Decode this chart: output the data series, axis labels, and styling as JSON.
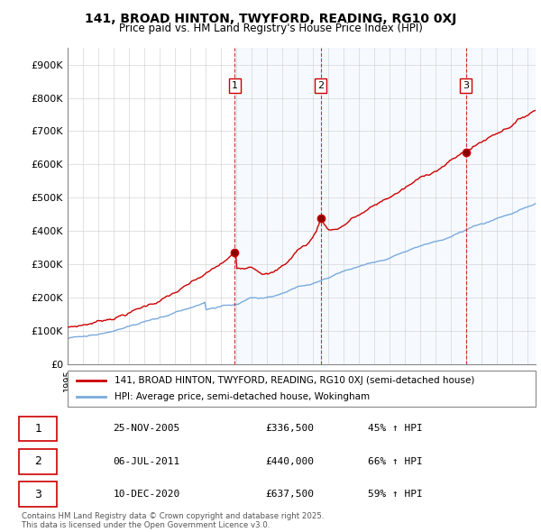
{
  "title1": "141, BROAD HINTON, TWYFORD, READING, RG10 0XJ",
  "title2": "Price paid vs. HM Land Registry's House Price Index (HPI)",
  "ylabel_ticks": [
    "£0",
    "£100K",
    "£200K",
    "£300K",
    "£400K",
    "£500K",
    "£600K",
    "£700K",
    "£800K",
    "£900K"
  ],
  "ytick_values": [
    0,
    100000,
    200000,
    300000,
    400000,
    500000,
    600000,
    700000,
    800000,
    900000
  ],
  "ylim": [
    0,
    950000
  ],
  "xlim_start": 1995.0,
  "xlim_end": 2025.5,
  "sale_dates": [
    2005.9,
    2011.5,
    2020.95
  ],
  "sale_prices": [
    336500,
    440000,
    637500
  ],
  "sale_labels": [
    "1",
    "2",
    "3"
  ],
  "vline_color": "#cc0000",
  "red_line_color": "#cc0000",
  "blue_line_color": "#7aaadd",
  "shade_color": "#ddeeff",
  "legend_label_red": "141, BROAD HINTON, TWYFORD, READING, RG10 0XJ (semi-detached house)",
  "legend_label_blue": "HPI: Average price, semi-detached house, Wokingham",
  "table_data": [
    [
      "1",
      "25-NOV-2005",
      "£336,500",
      "45% ↑ HPI"
    ],
    [
      "2",
      "06-JUL-2011",
      "£440,000",
      "66% ↑ HPI"
    ],
    [
      "3",
      "10-DEC-2020",
      "£637,500",
      "59% ↑ HPI"
    ]
  ],
  "footer": "Contains HM Land Registry data © Crown copyright and database right 2025.\nThis data is licensed under the Open Government Licence v3.0.",
  "bg_color": "#ffffff",
  "grid_color": "#cccccc"
}
